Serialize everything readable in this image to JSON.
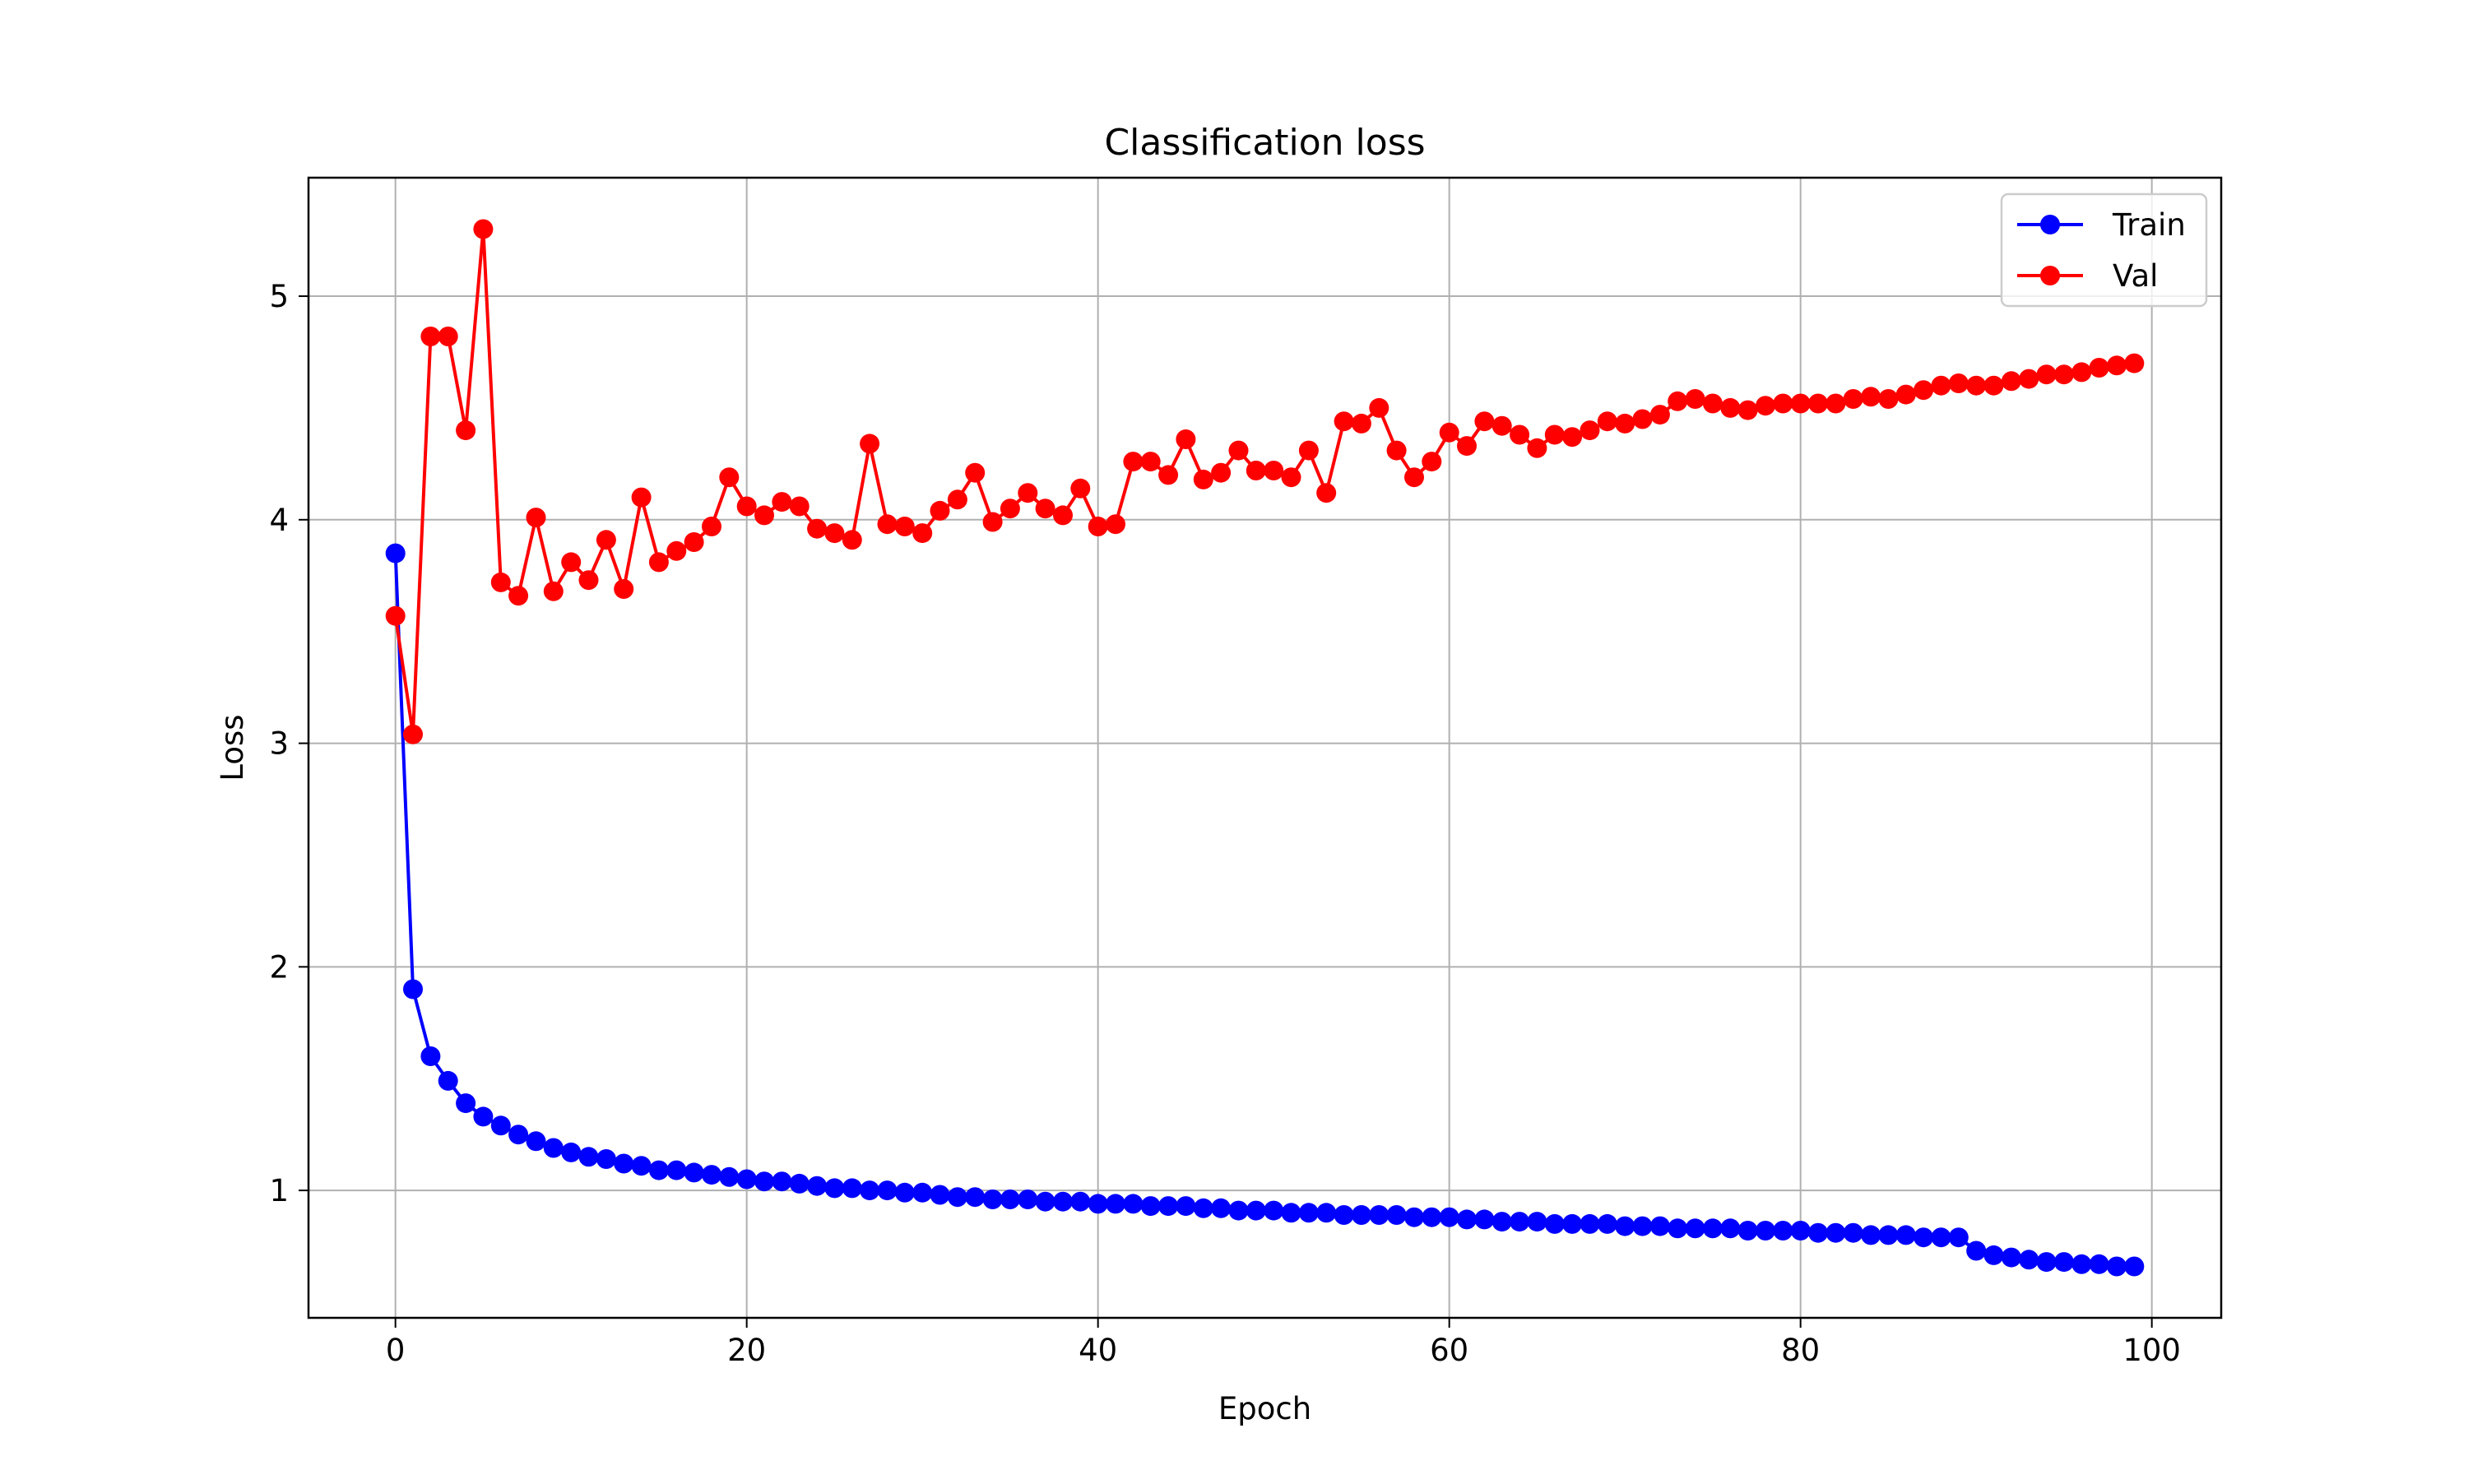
{
  "chart_data": {
    "type": "line",
    "title": "Classification loss",
    "xlabel": "Epoch",
    "ylabel": "Loss",
    "xlim": [
      -4.95,
      103.95
    ],
    "ylim": [
      0.43,
      5.53
    ],
    "x_ticks": [
      0,
      20,
      40,
      60,
      80,
      100
    ],
    "y_ticks": [
      1,
      2,
      3,
      4,
      5
    ],
    "x_tick_labels": [
      "0",
      "20",
      "40",
      "60",
      "80",
      "100"
    ],
    "y_tick_labels": [
      "1",
      "2",
      "3",
      "4",
      "5"
    ],
    "grid": true,
    "legend_position": "top-right",
    "series": [
      {
        "name": "Train",
        "color": "#0000ff",
        "x": [
          0,
          1,
          2,
          3,
          4,
          5,
          6,
          7,
          8,
          9,
          10,
          11,
          12,
          13,
          14,
          15,
          16,
          17,
          18,
          19,
          20,
          21,
          22,
          23,
          24,
          25,
          26,
          27,
          28,
          29,
          30,
          31,
          32,
          33,
          34,
          35,
          36,
          37,
          38,
          39,
          40,
          41,
          42,
          43,
          44,
          45,
          46,
          47,
          48,
          49,
          50,
          51,
          52,
          53,
          54,
          55,
          56,
          57,
          58,
          59,
          60,
          61,
          62,
          63,
          64,
          65,
          66,
          67,
          68,
          69,
          70,
          71,
          72,
          73,
          74,
          75,
          76,
          77,
          78,
          79,
          80,
          81,
          82,
          83,
          84,
          85,
          86,
          87,
          88,
          89,
          90,
          91,
          92,
          93,
          94,
          95,
          96,
          97,
          98,
          99
        ],
        "values": [
          3.85,
          1.9,
          1.6,
          1.49,
          1.39,
          1.33,
          1.29,
          1.25,
          1.22,
          1.19,
          1.17,
          1.15,
          1.14,
          1.12,
          1.11,
          1.09,
          1.09,
          1.08,
          1.07,
          1.06,
          1.05,
          1.04,
          1.04,
          1.03,
          1.02,
          1.01,
          1.01,
          1.0,
          1.0,
          0.99,
          0.99,
          0.98,
          0.97,
          0.97,
          0.96,
          0.96,
          0.96,
          0.95,
          0.95,
          0.95,
          0.94,
          0.94,
          0.94,
          0.93,
          0.93,
          0.93,
          0.92,
          0.92,
          0.91,
          0.91,
          0.91,
          0.9,
          0.9,
          0.9,
          0.89,
          0.89,
          0.89,
          0.89,
          0.88,
          0.88,
          0.88,
          0.87,
          0.87,
          0.86,
          0.86,
          0.86,
          0.85,
          0.85,
          0.85,
          0.85,
          0.84,
          0.84,
          0.84,
          0.83,
          0.83,
          0.83,
          0.83,
          0.82,
          0.82,
          0.82,
          0.82,
          0.81,
          0.81,
          0.81,
          0.8,
          0.8,
          0.8,
          0.79,
          0.79,
          0.79,
          0.73,
          0.71,
          0.7,
          0.69,
          0.68,
          0.68,
          0.67,
          0.67,
          0.66,
          0.66
        ]
      },
      {
        "name": "Val",
        "color": "#ff0000",
        "x": [
          0,
          1,
          2,
          3,
          4,
          5,
          6,
          7,
          8,
          9,
          10,
          11,
          12,
          13,
          14,
          15,
          16,
          17,
          18,
          19,
          20,
          21,
          22,
          23,
          24,
          25,
          26,
          27,
          28,
          29,
          30,
          31,
          32,
          33,
          34,
          35,
          36,
          37,
          38,
          39,
          40,
          41,
          42,
          43,
          44,
          45,
          46,
          47,
          48,
          49,
          50,
          51,
          52,
          53,
          54,
          55,
          56,
          57,
          58,
          59,
          60,
          61,
          62,
          63,
          64,
          65,
          66,
          67,
          68,
          69,
          70,
          71,
          72,
          73,
          74,
          75,
          76,
          77,
          78,
          79,
          80,
          81,
          82,
          83,
          84,
          85,
          86,
          87,
          88,
          89,
          90,
          91,
          92,
          93,
          94,
          95,
          96,
          97,
          98,
          99
        ],
        "values": [
          3.57,
          3.04,
          4.82,
          4.82,
          4.4,
          5.3,
          3.72,
          3.66,
          4.01,
          3.68,
          3.81,
          3.73,
          3.91,
          3.69,
          4.1,
          3.81,
          3.86,
          3.9,
          3.97,
          4.19,
          4.06,
          4.02,
          4.08,
          4.06,
          3.96,
          3.94,
          3.91,
          4.34,
          3.98,
          3.97,
          3.94,
          4.04,
          4.09,
          4.21,
          3.99,
          4.05,
          4.12,
          4.05,
          4.02,
          4.14,
          3.97,
          3.98,
          4.26,
          4.26,
          4.2,
          4.36,
          4.18,
          4.21,
          4.31,
          4.22,
          4.22,
          4.19,
          4.31,
          4.12,
          4.44,
          4.43,
          4.5,
          4.31,
          4.19,
          4.26,
          4.39,
          4.33,
          4.44,
          4.42,
          4.38,
          4.32,
          4.38,
          4.37,
          4.4,
          4.44,
          4.43,
          4.45,
          4.47,
          4.53,
          4.54,
          4.52,
          4.5,
          4.49,
          4.51,
          4.52,
          4.52,
          4.52,
          4.52,
          4.54,
          4.55,
          4.54,
          4.56,
          4.58,
          4.6,
          4.61,
          4.6,
          4.6,
          4.62,
          4.63,
          4.65,
          4.65,
          4.66,
          4.68,
          4.69,
          4.7
        ]
      }
    ]
  }
}
